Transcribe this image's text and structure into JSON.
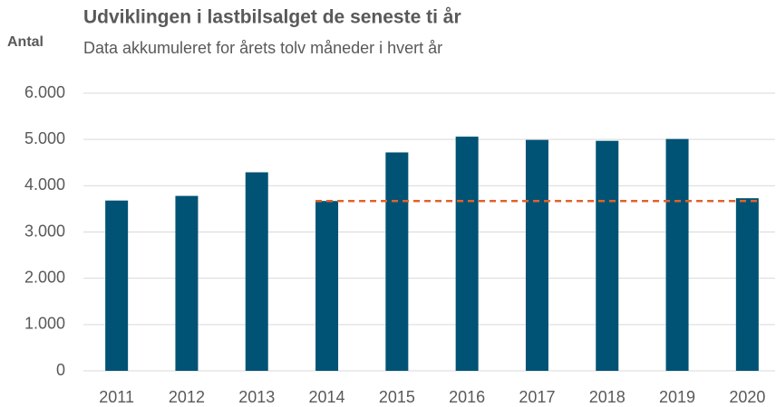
{
  "chart_data": {
    "type": "bar",
    "title": "Udviklingen i lastbilsalget de seneste ti år",
    "subtitle": "Data akkumuleret for årets tolv måneder i hvert år",
    "y_axis_label": "Antal",
    "categories": [
      "2011",
      "2012",
      "2013",
      "2014",
      "2015",
      "2016",
      "2017",
      "2018",
      "2019",
      "2020"
    ],
    "values": [
      3680,
      3780,
      4290,
      3670,
      4720,
      5060,
      4990,
      4970,
      5010,
      3730
    ],
    "color": "#005375",
    "ylim": [
      0,
      6000
    ],
    "yticks": [
      0,
      {
        "value": 1000,
        "label": "1.000"
      },
      {
        "value": 2000,
        "label": "2.000"
      },
      {
        "value": 3000,
        "label": "3.000"
      },
      {
        "value": 4000,
        "label": "4.000"
      },
      {
        "value": 5000,
        "label": "5.000"
      },
      {
        "value": 6000,
        "label": "6.000"
      }
    ],
    "grid": true,
    "reference_line": {
      "value": 3670,
      "start": "2014",
      "color": "#e0622a"
    }
  }
}
